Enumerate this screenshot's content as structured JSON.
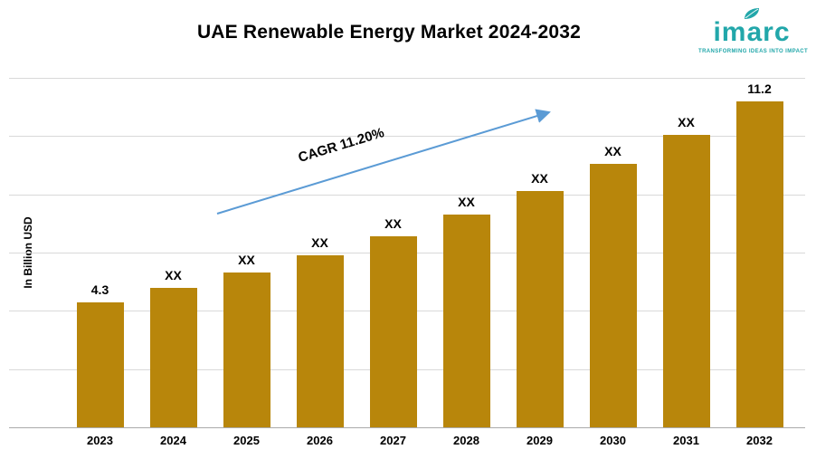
{
  "header": {
    "title": "UAE Renewable Energy Market 2024-2032"
  },
  "logo": {
    "name": "imarc",
    "tagline": "TRANSFORMING IDEAS INTO IMPACT",
    "color": "#22A7AA"
  },
  "chart_data": {
    "type": "bar",
    "title": "UAE Renewable Energy Market 2024-2032",
    "xlabel": "",
    "ylabel": "In Billion USD",
    "categories": [
      "2023",
      "2024",
      "2025",
      "2026",
      "2027",
      "2028",
      "2029",
      "2030",
      "2031",
      "2032"
    ],
    "values": [
      4.3,
      4.78,
      5.32,
      5.91,
      6.57,
      7.31,
      8.13,
      9.04,
      10.05,
      11.2
    ],
    "bar_labels": [
      "4.3",
      "XX",
      "XX",
      "XX",
      "XX",
      "XX",
      "XX",
      "XX",
      "XX",
      "11.2"
    ],
    "annotation": "CAGR 11.20%",
    "ylim": [
      0,
      12
    ],
    "grid": true,
    "legend": "none",
    "bar_color": "#B8860B",
    "arrow_color": "#5B9BD5"
  }
}
